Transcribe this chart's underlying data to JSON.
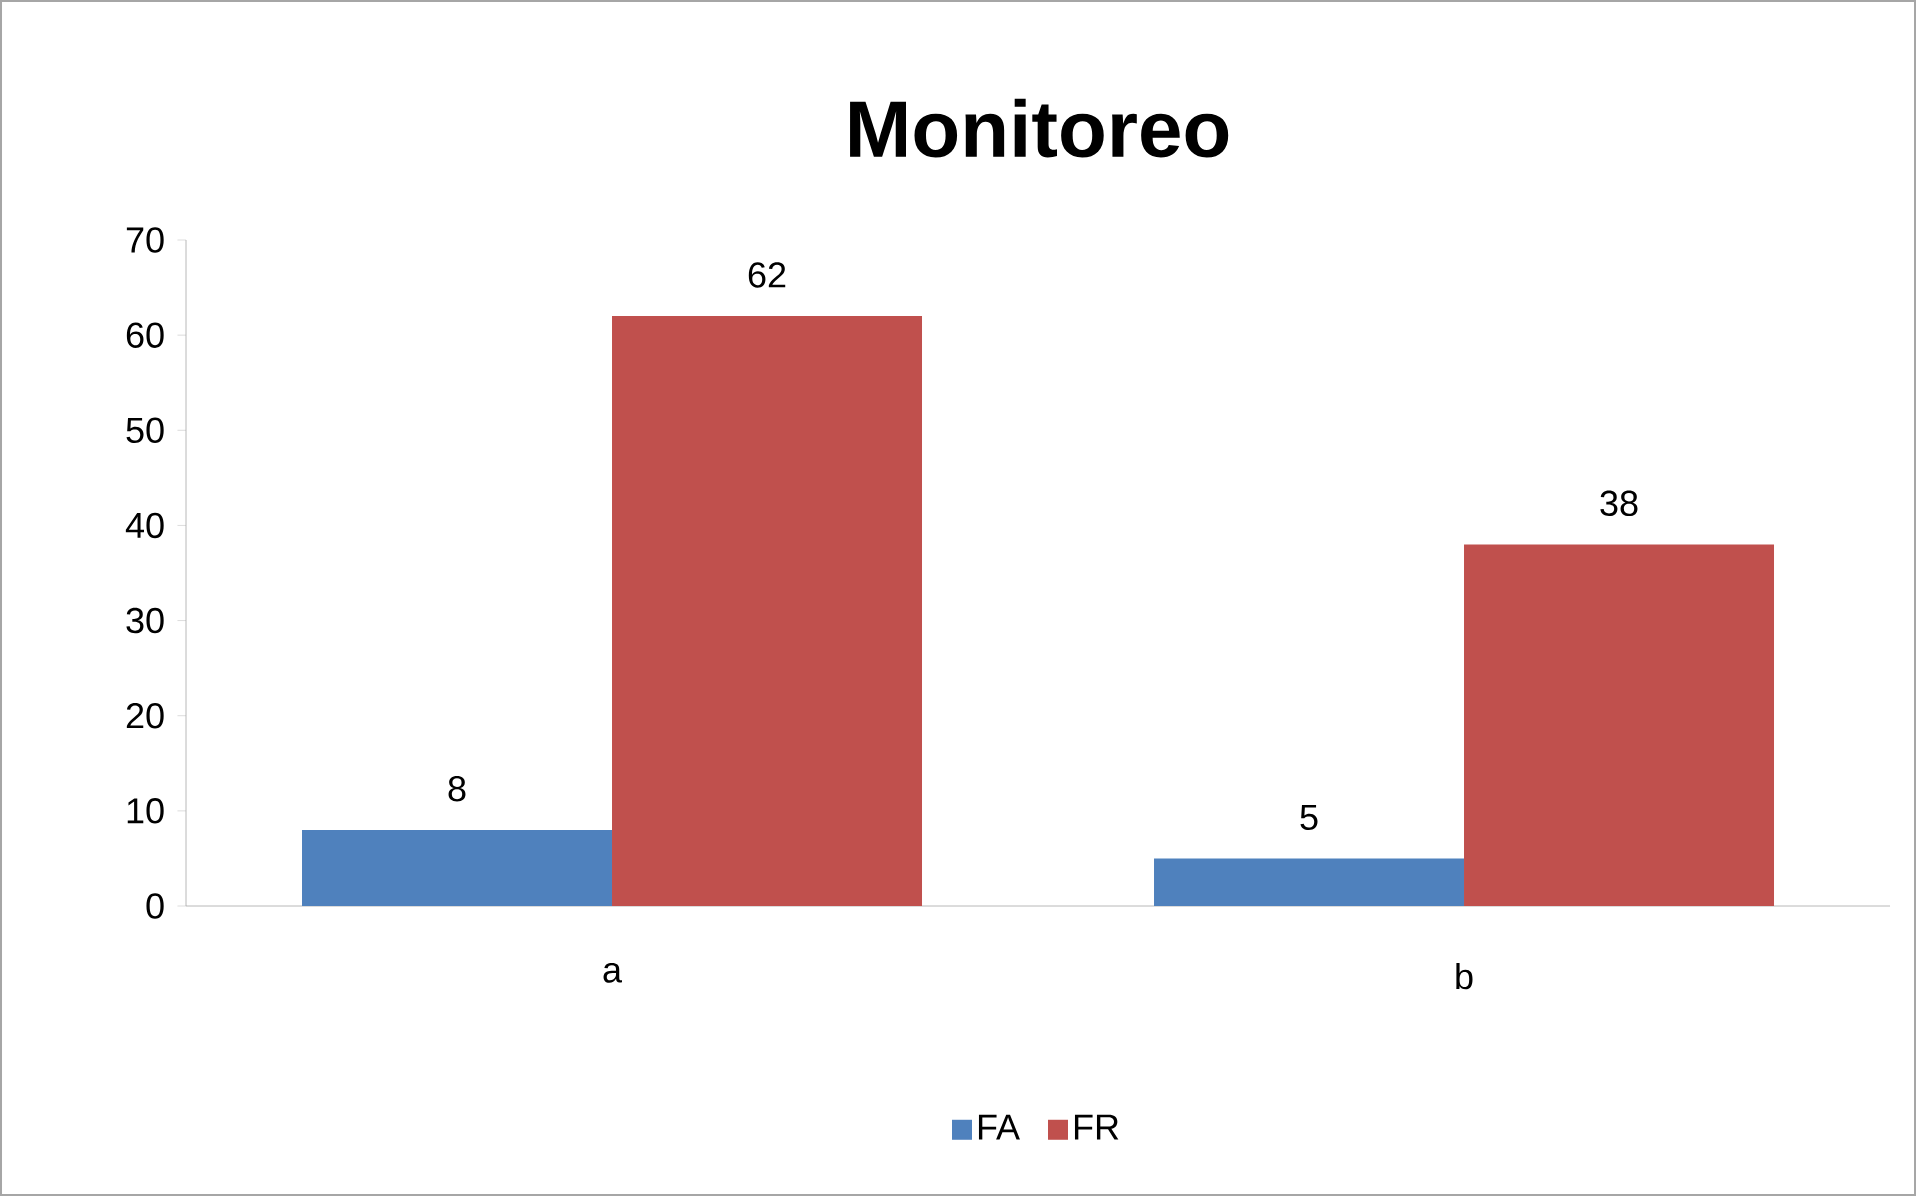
{
  "chart_data": {
    "type": "bar",
    "title": "Monitoreo",
    "categories": [
      "a",
      "b"
    ],
    "series": [
      {
        "name": "FA",
        "color": "#4f81bd",
        "values": [
          8,
          5
        ]
      },
      {
        "name": "FR",
        "color": "#c0504d",
        "values": [
          62,
          38
        ]
      }
    ],
    "ylim": [
      0,
      70
    ],
    "yticks": [
      0,
      10,
      20,
      30,
      40,
      50,
      60,
      70
    ],
    "grid": false,
    "legend": "bottom",
    "data_labels": true
  }
}
